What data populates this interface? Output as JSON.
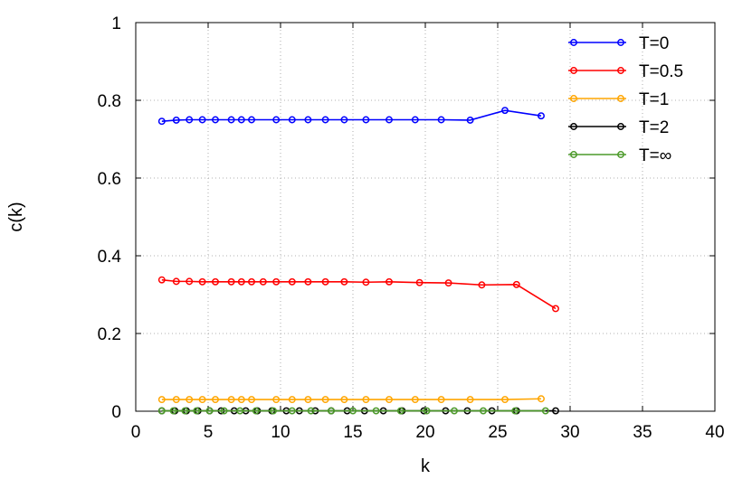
{
  "chart_data": {
    "type": "line",
    "title": "",
    "xlabel": "k",
    "ylabel": "c(k)",
    "xlim": [
      0,
      40
    ],
    "ylim": [
      0,
      1
    ],
    "xticks": [
      "0",
      "5",
      "10",
      "15",
      "20",
      "25",
      "30",
      "35",
      "40"
    ],
    "yticks": [
      "0",
      "0.2",
      "0.4",
      "0.6",
      "0.8",
      "1"
    ],
    "grid": true,
    "legend_position": "top-right",
    "series": [
      {
        "name": "T=0",
        "color": "#0000ff",
        "points": [
          [
            1.8,
            0.746
          ],
          [
            2.8,
            0.749
          ],
          [
            3.7,
            0.75
          ],
          [
            4.6,
            0.75
          ],
          [
            5.5,
            0.75
          ],
          [
            6.6,
            0.75
          ],
          [
            7.3,
            0.75
          ],
          [
            8.0,
            0.75
          ],
          [
            9.7,
            0.75
          ],
          [
            10.8,
            0.75
          ],
          [
            11.9,
            0.75
          ],
          [
            13.1,
            0.75
          ],
          [
            14.4,
            0.75
          ],
          [
            15.9,
            0.75
          ],
          [
            17.5,
            0.75
          ],
          [
            19.3,
            0.75
          ],
          [
            21.1,
            0.75
          ],
          [
            23.1,
            0.749
          ],
          [
            25.5,
            0.774
          ],
          [
            28.0,
            0.76
          ]
        ]
      },
      {
        "name": "T=0.5",
        "color": "#ff0000",
        "points": [
          [
            1.8,
            0.338
          ],
          [
            2.8,
            0.334
          ],
          [
            3.7,
            0.334
          ],
          [
            4.6,
            0.333
          ],
          [
            5.5,
            0.333
          ],
          [
            6.6,
            0.333
          ],
          [
            7.3,
            0.333
          ],
          [
            8.0,
            0.333
          ],
          [
            8.8,
            0.333
          ],
          [
            9.7,
            0.333
          ],
          [
            10.8,
            0.333
          ],
          [
            11.9,
            0.333
          ],
          [
            13.1,
            0.333
          ],
          [
            14.4,
            0.333
          ],
          [
            15.9,
            0.332
          ],
          [
            17.5,
            0.333
          ],
          [
            19.6,
            0.331
          ],
          [
            21.6,
            0.33
          ],
          [
            23.9,
            0.325
          ],
          [
            26.3,
            0.326
          ],
          [
            29.0,
            0.264
          ]
        ]
      },
      {
        "name": "T=1",
        "color": "#ffa500",
        "points": [
          [
            1.8,
            0.03
          ],
          [
            2.8,
            0.03
          ],
          [
            3.7,
            0.03
          ],
          [
            4.6,
            0.03
          ],
          [
            5.5,
            0.03
          ],
          [
            6.6,
            0.03
          ],
          [
            7.3,
            0.03
          ],
          [
            8.0,
            0.03
          ],
          [
            9.7,
            0.03
          ],
          [
            10.8,
            0.03
          ],
          [
            11.9,
            0.03
          ],
          [
            13.1,
            0.03
          ],
          [
            14.4,
            0.03
          ],
          [
            15.9,
            0.03
          ],
          [
            17.5,
            0.03
          ],
          [
            19.3,
            0.03
          ],
          [
            21.1,
            0.03
          ],
          [
            23.1,
            0.03
          ],
          [
            25.5,
            0.03
          ],
          [
            28.0,
            0.032
          ]
        ]
      },
      {
        "name": "T=2",
        "color": "#000000",
        "points": [
          [
            1.8,
            0.001
          ],
          [
            2.7,
            0.001
          ],
          [
            3.5,
            0.001
          ],
          [
            4.3,
            0.001
          ],
          [
            5.1,
            0.001
          ],
          [
            5.9,
            0.001
          ],
          [
            6.8,
            0.001
          ],
          [
            7.6,
            0.001
          ],
          [
            8.4,
            0.001
          ],
          [
            9.4,
            0.001
          ],
          [
            10.4,
            0.001
          ],
          [
            11.3,
            0.001
          ],
          [
            12.4,
            0.001
          ],
          [
            13.5,
            0.001
          ],
          [
            14.6,
            0.001
          ],
          [
            15.8,
            0.001
          ],
          [
            17.1,
            0.001
          ],
          [
            18.4,
            0.001
          ],
          [
            19.9,
            0.001
          ],
          [
            21.4,
            0.001
          ],
          [
            22.9,
            0.001
          ],
          [
            24.6,
            0.001
          ],
          [
            26.3,
            0.001
          ],
          [
            29.0,
            0.001
          ]
        ]
      },
      {
        "name": "T=∞",
        "color": "#4c9a2a",
        "points": [
          [
            1.8,
            0.001
          ],
          [
            2.6,
            0.001
          ],
          [
            3.4,
            0.001
          ],
          [
            4.2,
            0.001
          ],
          [
            5.1,
            0.001
          ],
          [
            6.1,
            0.001
          ],
          [
            7.2,
            0.001
          ],
          [
            8.3,
            0.001
          ],
          [
            9.5,
            0.001
          ],
          [
            10.8,
            0.001
          ],
          [
            12.1,
            0.001
          ],
          [
            13.5,
            0.001
          ],
          [
            15.0,
            0.001
          ],
          [
            16.6,
            0.001
          ],
          [
            18.3,
            0.001
          ],
          [
            20.1,
            0.001
          ],
          [
            22.0,
            0.001
          ],
          [
            24.0,
            0.001
          ],
          [
            26.2,
            0.001
          ],
          [
            28.3,
            0.001
          ]
        ]
      }
    ]
  }
}
